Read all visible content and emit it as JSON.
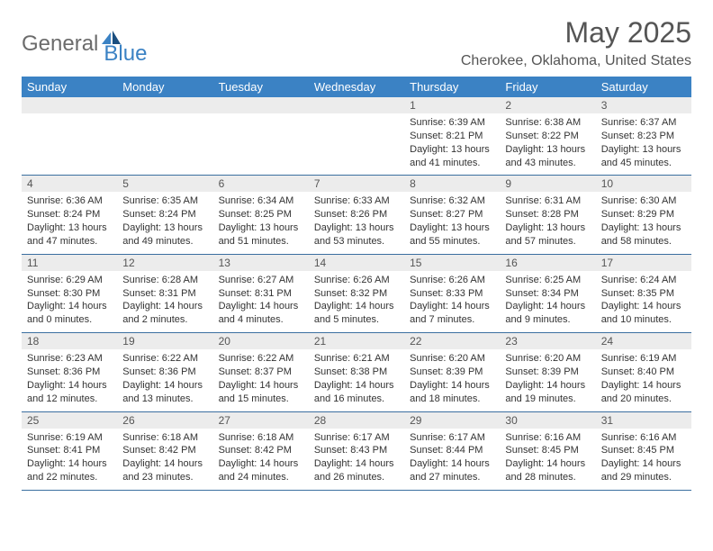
{
  "logo": {
    "general": "General",
    "blue": "Blue"
  },
  "title": "May 2025",
  "location": "Cherokee, Oklahoma, United States",
  "weekday_header_bg": "#3b82c4",
  "weekday_header_fg": "#ffffff",
  "daynum_bg": "#ececec",
  "week_border_color": "#3b6fa0",
  "weekdays": [
    "Sunday",
    "Monday",
    "Tuesday",
    "Wednesday",
    "Thursday",
    "Friday",
    "Saturday"
  ],
  "weeks": [
    [
      null,
      null,
      null,
      null,
      {
        "n": "1",
        "sr": "6:39 AM",
        "ss": "8:21 PM",
        "dl": "13 hours and 41 minutes."
      },
      {
        "n": "2",
        "sr": "6:38 AM",
        "ss": "8:22 PM",
        "dl": "13 hours and 43 minutes."
      },
      {
        "n": "3",
        "sr": "6:37 AM",
        "ss": "8:23 PM",
        "dl": "13 hours and 45 minutes."
      }
    ],
    [
      {
        "n": "4",
        "sr": "6:36 AM",
        "ss": "8:24 PM",
        "dl": "13 hours and 47 minutes."
      },
      {
        "n": "5",
        "sr": "6:35 AM",
        "ss": "8:24 PM",
        "dl": "13 hours and 49 minutes."
      },
      {
        "n": "6",
        "sr": "6:34 AM",
        "ss": "8:25 PM",
        "dl": "13 hours and 51 minutes."
      },
      {
        "n": "7",
        "sr": "6:33 AM",
        "ss": "8:26 PM",
        "dl": "13 hours and 53 minutes."
      },
      {
        "n": "8",
        "sr": "6:32 AM",
        "ss": "8:27 PM",
        "dl": "13 hours and 55 minutes."
      },
      {
        "n": "9",
        "sr": "6:31 AM",
        "ss": "8:28 PM",
        "dl": "13 hours and 57 minutes."
      },
      {
        "n": "10",
        "sr": "6:30 AM",
        "ss": "8:29 PM",
        "dl": "13 hours and 58 minutes."
      }
    ],
    [
      {
        "n": "11",
        "sr": "6:29 AM",
        "ss": "8:30 PM",
        "dl": "14 hours and 0 minutes."
      },
      {
        "n": "12",
        "sr": "6:28 AM",
        "ss": "8:31 PM",
        "dl": "14 hours and 2 minutes."
      },
      {
        "n": "13",
        "sr": "6:27 AM",
        "ss": "8:31 PM",
        "dl": "14 hours and 4 minutes."
      },
      {
        "n": "14",
        "sr": "6:26 AM",
        "ss": "8:32 PM",
        "dl": "14 hours and 5 minutes."
      },
      {
        "n": "15",
        "sr": "6:26 AM",
        "ss": "8:33 PM",
        "dl": "14 hours and 7 minutes."
      },
      {
        "n": "16",
        "sr": "6:25 AM",
        "ss": "8:34 PM",
        "dl": "14 hours and 9 minutes."
      },
      {
        "n": "17",
        "sr": "6:24 AM",
        "ss": "8:35 PM",
        "dl": "14 hours and 10 minutes."
      }
    ],
    [
      {
        "n": "18",
        "sr": "6:23 AM",
        "ss": "8:36 PM",
        "dl": "14 hours and 12 minutes."
      },
      {
        "n": "19",
        "sr": "6:22 AM",
        "ss": "8:36 PM",
        "dl": "14 hours and 13 minutes."
      },
      {
        "n": "20",
        "sr": "6:22 AM",
        "ss": "8:37 PM",
        "dl": "14 hours and 15 minutes."
      },
      {
        "n": "21",
        "sr": "6:21 AM",
        "ss": "8:38 PM",
        "dl": "14 hours and 16 minutes."
      },
      {
        "n": "22",
        "sr": "6:20 AM",
        "ss": "8:39 PM",
        "dl": "14 hours and 18 minutes."
      },
      {
        "n": "23",
        "sr": "6:20 AM",
        "ss": "8:39 PM",
        "dl": "14 hours and 19 minutes."
      },
      {
        "n": "24",
        "sr": "6:19 AM",
        "ss": "8:40 PM",
        "dl": "14 hours and 20 minutes."
      }
    ],
    [
      {
        "n": "25",
        "sr": "6:19 AM",
        "ss": "8:41 PM",
        "dl": "14 hours and 22 minutes."
      },
      {
        "n": "26",
        "sr": "6:18 AM",
        "ss": "8:42 PM",
        "dl": "14 hours and 23 minutes."
      },
      {
        "n": "27",
        "sr": "6:18 AM",
        "ss": "8:42 PM",
        "dl": "14 hours and 24 minutes."
      },
      {
        "n": "28",
        "sr": "6:17 AM",
        "ss": "8:43 PM",
        "dl": "14 hours and 26 minutes."
      },
      {
        "n": "29",
        "sr": "6:17 AM",
        "ss": "8:44 PM",
        "dl": "14 hours and 27 minutes."
      },
      {
        "n": "30",
        "sr": "6:16 AM",
        "ss": "8:45 PM",
        "dl": "14 hours and 28 minutes."
      },
      {
        "n": "31",
        "sr": "6:16 AM",
        "ss": "8:45 PM",
        "dl": "14 hours and 29 minutes."
      }
    ]
  ],
  "labels": {
    "sunrise": "Sunrise: ",
    "sunset": "Sunset: ",
    "daylight": "Daylight: "
  }
}
